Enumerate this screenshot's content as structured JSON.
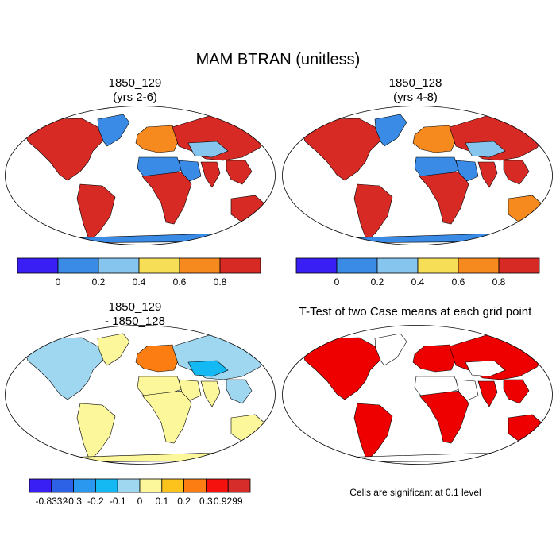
{
  "figure": {
    "title": "MAM BTRAN (unitless)",
    "note": "Cells are significant at 0.1 level"
  },
  "colors": {
    "outline": "#000000",
    "ttest_fill": "#ee0000"
  },
  "chart_data": [
    {
      "type": "heatmap",
      "title_line1": "1850_129",
      "title_line2": "(yrs 2-6)",
      "legend_position": "bottom",
      "colorbar": {
        "colors": [
          "#3a1ff5",
          "#3a8be6",
          "#86c6ee",
          "#f6df56",
          "#f68a1f",
          "#d82a24"
        ],
        "labels": [
          "0",
          "0.2",
          "0.4",
          "0.6",
          "0.8"
        ]
      },
      "regions": {
        "north_america": 5,
        "south_america": 5,
        "europe": 4,
        "africa": 5,
        "sahara": 1,
        "arabia": 1,
        "asia": 5,
        "central_asia": 2,
        "india": 5,
        "southeast_asia": 5,
        "australia": 5,
        "greenland": 1,
        "antarctica": 1
      }
    },
    {
      "type": "heatmap",
      "title_line1": "1850_128",
      "title_line2": "(yrs 4-8)",
      "legend_position": "bottom",
      "colorbar": {
        "colors": [
          "#3a1ff5",
          "#3a8be6",
          "#86c6ee",
          "#f6df56",
          "#f68a1f",
          "#d82a24"
        ],
        "labels": [
          "0",
          "0.2",
          "0.4",
          "0.6",
          "0.8"
        ]
      },
      "regions": {
        "north_america": 5,
        "south_america": 5,
        "europe": 4,
        "africa": 5,
        "sahara": 1,
        "arabia": 1,
        "asia": 5,
        "central_asia": 2,
        "india": 5,
        "southeast_asia": 5,
        "australia": 4,
        "greenland": 1,
        "antarctica": 1
      }
    },
    {
      "type": "heatmap",
      "title_line1": "1850_129",
      "title_line2": "- 1850_128",
      "legend_position": "bottom",
      "colorbar": {
        "colors": [
          "#3a1ff5",
          "#2e62e6",
          "#2a98ee",
          "#14b8f2",
          "#9fd6f0",
          "#fcf79a",
          "#fcc31c",
          "#fc7e12",
          "#f5120e",
          "#d62c2a"
        ],
        "labels": [
          "-0.8332",
          "-0.3",
          "-0.2",
          "-0.1",
          "0",
          "0.1",
          "0.2",
          "0.3",
          "0.9299"
        ]
      },
      "regions": {
        "north_america": 4,
        "south_america": 5,
        "europe": 7,
        "africa": 5,
        "sahara": 5,
        "arabia": 5,
        "asia": 4,
        "central_asia": 3,
        "india": 5,
        "southeast_asia": 4,
        "australia": 5,
        "greenland": 5,
        "antarctica": 5
      }
    },
    {
      "type": "heatmap",
      "title": "T-Test of two Case means at each grid point",
      "regions": {
        "north_america": 1,
        "south_america": 1,
        "europe": 1,
        "africa": 1,
        "sahara": 0,
        "arabia": 0,
        "asia": 1,
        "central_asia": 0,
        "india": 1,
        "southeast_asia": 1,
        "australia": 1,
        "greenland": 0,
        "antarctica": 0
      }
    }
  ]
}
